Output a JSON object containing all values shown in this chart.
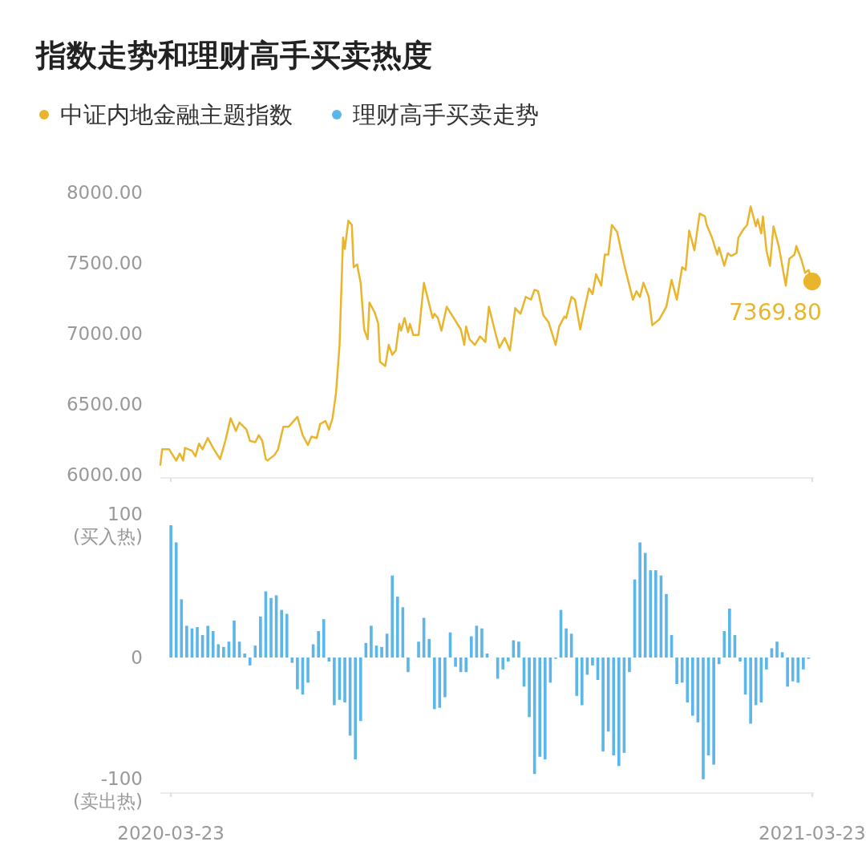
{
  "chart_data": [
    {
      "type": "line",
      "title": "指数走势和理财高手买卖热度",
      "legend": "top",
      "tick_labels": "y",
      "xlim": [
        "2020-03-17",
        "2021-03-24"
      ],
      "xticks": [
        "2020-03-23",
        "2021-03-23"
      ],
      "ylim": [
        6000,
        8000
      ],
      "yticks": [
        {
          "value": 6000,
          "label": "6000.00"
        },
        {
          "value": 6500,
          "label": "6500.00"
        },
        {
          "value": 7000,
          "label": "7000.00"
        },
        {
          "value": 7500,
          "label": "7500.00"
        },
        {
          "value": 8000,
          "label": "8000.00"
        }
      ],
      "annotations": [
        {
          "text": "7369.80",
          "x": "2021-03-23",
          "y": 7369.8
        }
      ],
      "series": [
        {
          "name": "中证内地金融主题指数",
          "color": "#e9b52c",
          "x": [
            "2020-03-17",
            "2020-03-18",
            "2020-03-22",
            "2020-03-26",
            "2020-03-28",
            "2020-03-30",
            "2020-03-31",
            "2020-04-04",
            "2020-04-06",
            "2020-04-08",
            "2020-04-10",
            "2020-04-13",
            "2020-04-16",
            "2020-04-20",
            "2020-04-23",
            "2020-04-26",
            "2020-04-29",
            "2020-05-01",
            "2020-05-05",
            "2020-05-07",
            "2020-05-10",
            "2020-05-12",
            "2020-05-14",
            "2020-05-16",
            "2020-05-17",
            "2020-05-21",
            "2020-05-23",
            "2020-05-26",
            "2020-05-29",
            "2020-06-03",
            "2020-06-06",
            "2020-06-09",
            "2020-06-11",
            "2020-06-14",
            "2020-06-16",
            "2020-06-19",
            "2020-06-21",
            "2020-06-23",
            "2020-06-25",
            "2020-06-27",
            "2020-06-29",
            "2020-06-30",
            "2020-07-02",
            "2020-07-04",
            "2020-07-05",
            "2020-07-07",
            "2020-07-09",
            "2020-07-11",
            "2020-07-13",
            "2020-07-14",
            "2020-07-17",
            "2020-07-19",
            "2020-07-20",
            "2020-07-23",
            "2020-07-25",
            "2020-07-27",
            "2020-07-29",
            "2020-07-31",
            "2020-08-01",
            "2020-08-03",
            "2020-08-05",
            "2020-08-06",
            "2020-08-08",
            "2020-08-11",
            "2020-08-14",
            "2020-08-19",
            "2020-08-20",
            "2020-08-22",
            "2020-08-24",
            "2020-08-27",
            "2020-08-30",
            "2020-09-04",
            "2020-09-06",
            "2020-09-07",
            "2020-09-09",
            "2020-09-12",
            "2020-09-15",
            "2020-09-18",
            "2020-09-20",
            "2020-09-24",
            "2020-09-26",
            "2020-09-29",
            "2020-10-02",
            "2020-10-05",
            "2020-10-08",
            "2020-10-11",
            "2020-10-14",
            "2020-10-16",
            "2020-10-18",
            "2020-10-21",
            "2020-10-24",
            "2020-10-28",
            "2020-10-30",
            "2020-11-02",
            "2020-11-03",
            "2020-11-06",
            "2020-11-08",
            "2020-11-11",
            "2020-11-13",
            "2020-11-16",
            "2020-11-18",
            "2020-11-20",
            "2020-11-23",
            "2020-11-25",
            "2020-11-27",
            "2020-11-29",
            "2020-12-02",
            "2020-12-06",
            "2020-12-09",
            "2020-12-11",
            "2020-12-13",
            "2020-12-15",
            "2020-12-17",
            "2020-12-20",
            "2020-12-22",
            "2020-12-26",
            "2020-12-30",
            "2021-01-02",
            "2021-01-05",
            "2021-01-08",
            "2021-01-10",
            "2021-01-12",
            "2021-01-15",
            "2021-01-18",
            "2021-01-21",
            "2021-01-22",
            "2021-01-25",
            "2021-01-28",
            "2021-01-29",
            "2021-02-01",
            "2021-02-03",
            "2021-02-05",
            "2021-02-08",
            "2021-02-09",
            "2021-02-12",
            "2021-02-14",
            "2021-02-16",
            "2021-02-19",
            "2021-02-20",
            "2021-02-22",
            "2021-02-23",
            "2021-02-25",
            "2021-02-27",
            "2021-03-01",
            "2021-03-04",
            "2021-03-08",
            "2021-03-10",
            "2021-03-13",
            "2021-03-14",
            "2021-03-17",
            "2021-03-19",
            "2021-03-21",
            "2021-03-23"
          ],
          "values": [
            6070,
            6180,
            6180,
            6100,
            6150,
            6100,
            6190,
            6170,
            6130,
            6220,
            6180,
            6260,
            6190,
            6110,
            6240,
            6400,
            6310,
            6370,
            6320,
            6240,
            6230,
            6280,
            6240,
            6110,
            6100,
            6140,
            6180,
            6340,
            6340,
            6410,
            6280,
            6210,
            6270,
            6260,
            6360,
            6380,
            6320,
            6400,
            6580,
            6920,
            7680,
            7600,
            7800,
            7770,
            7470,
            7490,
            7360,
            7030,
            6960,
            7220,
            7150,
            7070,
            6800,
            6770,
            6920,
            6850,
            6880,
            7070,
            7020,
            7110,
            7010,
            7070,
            6990,
            6990,
            7360,
            7110,
            7140,
            7110,
            7020,
            7190,
            7130,
            7030,
            6920,
            7050,
            6960,
            6920,
            6980,
            6940,
            7190,
            6990,
            6900,
            6970,
            6880,
            7180,
            7140,
            7260,
            7240,
            7310,
            7300,
            7130,
            7080,
            6920,
            7050,
            7120,
            7110,
            7260,
            7240,
            7030,
            7150,
            7320,
            7280,
            7420,
            7340,
            7560,
            7560,
            7770,
            7720,
            7490,
            7340,
            7240,
            7300,
            7260,
            7360,
            7260,
            7060,
            7100,
            7190,
            7380,
            7240,
            7470,
            7450,
            7730,
            7590,
            7850,
            7830,
            7770,
            7680,
            7560,
            7610,
            7480,
            7570,
            7550,
            7570,
            7680,
            7740,
            7770,
            7900,
            7760,
            7810,
            7710,
            7830,
            7590,
            7480,
            7760,
            7620,
            7340,
            7530,
            7560,
            7620,
            7520,
            7430,
            7450,
            7369.8
          ]
        }
      ]
    },
    {
      "type": "bar",
      "legend": "top",
      "xlim": [
        "2020-03-17",
        "2021-03-24"
      ],
      "ylim": [
        -100,
        100
      ],
      "yticks": [
        {
          "value": -100,
          "label": "-100\n(卖出热)"
        },
        0,
        {
          "value": 100,
          "label": "100\n(买入热)"
        }
      ],
      "xticks": [
        "2020-03-23",
        "2021-03-23"
      ],
      "series": [
        {
          "name": "理财高手买卖走势",
          "color": "#5cb6e8",
          "x": [
            "2020-03-23",
            "2020-03-26",
            "2020-03-29",
            "2020-04-01",
            "2020-04-04",
            "2020-04-07",
            "2020-04-10",
            "2020-04-13",
            "2020-04-16",
            "2020-04-19",
            "2020-04-22",
            "2020-04-25",
            "2020-04-28",
            "2020-05-01",
            "2020-05-04",
            "2020-05-07",
            "2020-05-10",
            "2020-05-13",
            "2020-05-16",
            "2020-05-19",
            "2020-05-22",
            "2020-05-25",
            "2020-05-28",
            "2020-05-31",
            "2020-06-03",
            "2020-06-06",
            "2020-06-09",
            "2020-06-12",
            "2020-06-15",
            "2020-06-18",
            "2020-06-21",
            "2020-06-24",
            "2020-06-27",
            "2020-06-30",
            "2020-07-03",
            "2020-07-06",
            "2020-07-09",
            "2020-07-12",
            "2020-07-15",
            "2020-07-18",
            "2020-07-21",
            "2020-07-24",
            "2020-07-27",
            "2020-07-30",
            "2020-08-02",
            "2020-08-05",
            "2020-08-08",
            "2020-08-11",
            "2020-08-14",
            "2020-08-17",
            "2020-08-20",
            "2020-08-23",
            "2020-08-26",
            "2020-08-29",
            "2020-09-01",
            "2020-09-04",
            "2020-09-07",
            "2020-09-10",
            "2020-09-13",
            "2020-09-16",
            "2020-09-19",
            "2020-09-22",
            "2020-09-25",
            "2020-09-28",
            "2020-10-01",
            "2020-10-04",
            "2020-10-07",
            "2020-10-10",
            "2020-10-13",
            "2020-10-16",
            "2020-10-19",
            "2020-10-22",
            "2020-10-25",
            "2020-10-28",
            "2020-10-31",
            "2020-11-03",
            "2020-11-06",
            "2020-11-09",
            "2020-11-12",
            "2020-11-15",
            "2020-11-18",
            "2020-11-21",
            "2020-11-24",
            "2020-11-27",
            "2020-11-30",
            "2020-12-03",
            "2020-12-06",
            "2020-12-09",
            "2020-12-12",
            "2020-12-15",
            "2020-12-18",
            "2020-12-21",
            "2020-12-24",
            "2020-12-27",
            "2020-12-30",
            "2021-01-02",
            "2021-01-05",
            "2021-01-08",
            "2021-01-11",
            "2021-01-14",
            "2021-01-17",
            "2021-01-20",
            "2021-01-23",
            "2021-01-26",
            "2021-01-29",
            "2021-02-01",
            "2021-02-04",
            "2021-02-07",
            "2021-02-10",
            "2021-02-13",
            "2021-02-16",
            "2021-02-19",
            "2021-02-22",
            "2021-02-25",
            "2021-02-28",
            "2021-03-03",
            "2021-03-06",
            "2021-03-09",
            "2021-03-12",
            "2021-03-15",
            "2021-03-18",
            "2021-03-21"
          ],
          "values": [
            100,
            87,
            44,
            24,
            22,
            23,
            17,
            24,
            20,
            10,
            8,
            12,
            28,
            12,
            3,
            -6,
            9,
            31,
            50,
            45,
            47,
            36,
            33,
            -4,
            -24,
            -28,
            -19,
            10,
            20,
            29,
            -3,
            -36,
            -32,
            -34,
            -59,
            -77,
            -48,
            11,
            24,
            9,
            8,
            18,
            62,
            46,
            38,
            -11,
            0,
            12,
            30,
            14,
            -39,
            -38,
            -30,
            19,
            -7,
            -11,
            -11,
            16,
            24,
            22,
            3,
            0,
            -16,
            -9,
            -3,
            13,
            12,
            -22,
            -45,
            -88,
            -75,
            -77,
            -19,
            -1,
            36,
            22,
            18,
            -29,
            -36,
            -13,
            -6,
            -17,
            -71,
            -56,
            -74,
            -82,
            -72,
            -11,
            59,
            87,
            79,
            66,
            66,
            62,
            48,
            17,
            -20,
            -19,
            -34,
            -44,
            -49,
            -92,
            -74,
            -81,
            -5,
            20,
            37,
            17,
            -3,
            -28,
            -50,
            -36,
            -34,
            -9,
            7,
            12,
            4,
            -22,
            -18,
            -19,
            -9,
            -1
          ]
        }
      ]
    }
  ]
}
